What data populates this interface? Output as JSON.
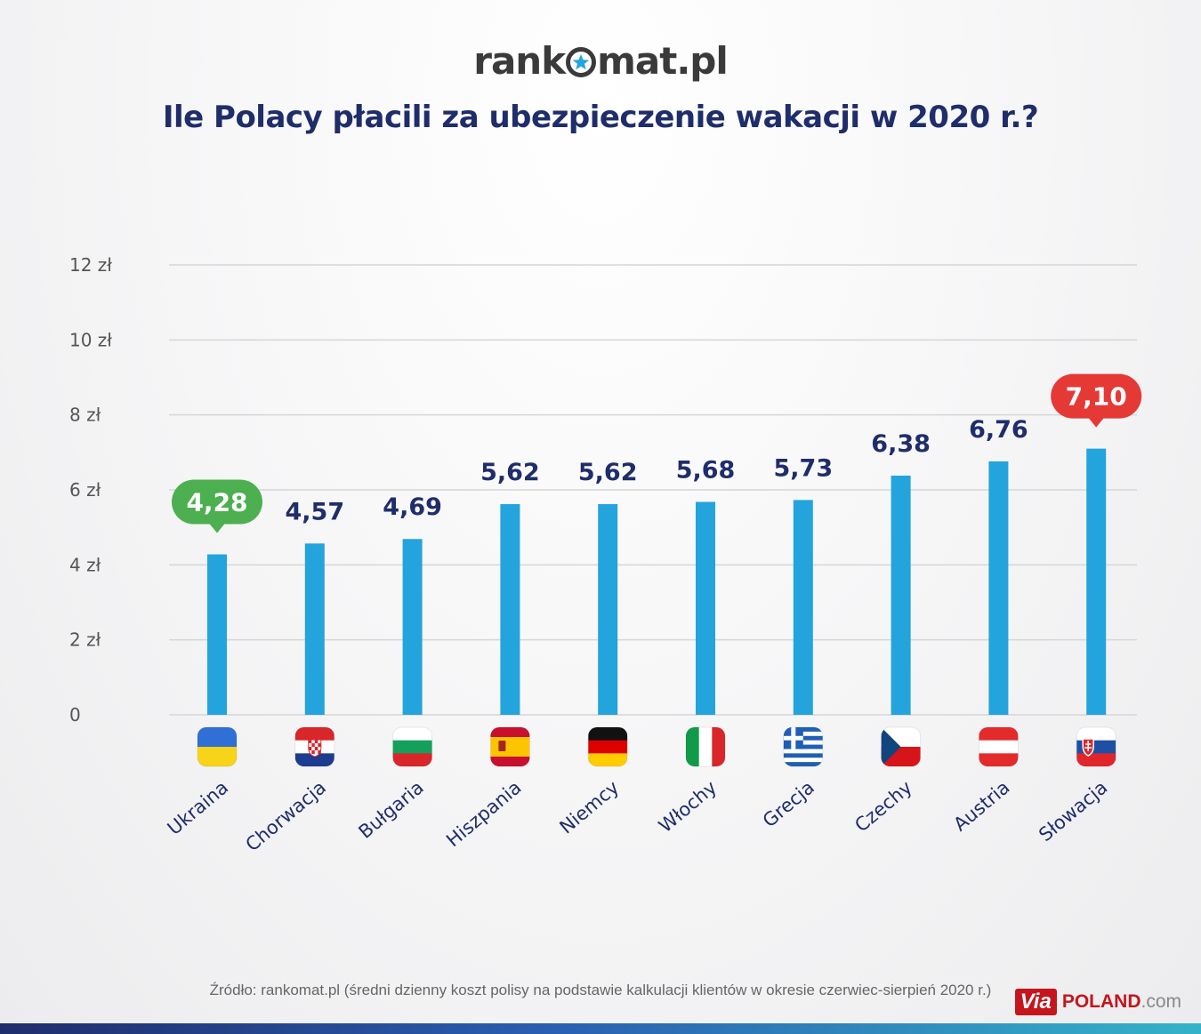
{
  "brand": {
    "logo_text": "rankomat.pl",
    "logo_prefix": "rank",
    "logo_suffix": "mat.pl"
  },
  "colors": {
    "bar": "#23a4dd",
    "min_badge": "#4caf50",
    "max_badge": "#e53935",
    "value_text": "#1f2d6b",
    "grid": "#d6d6d6"
  },
  "chart_data": {
    "type": "bar",
    "title": "Ile Polacy płacili za ubezpieczenie wakacji w 2020 r.?",
    "categories": [
      "Ukraina",
      "Chorwacja",
      "Bułgaria",
      "Hiszpania",
      "Niemcy",
      "Włochy",
      "Grecja",
      "Czechy",
      "Austria",
      "Słowacja"
    ],
    "values": [
      4.28,
      4.57,
      4.69,
      5.62,
      5.62,
      5.68,
      5.73,
      6.38,
      6.76,
      7.1
    ],
    "value_labels": [
      "4,28",
      "4,57",
      "4,69",
      "5,62",
      "5,62",
      "5,68",
      "5,73",
      "6,38",
      "6,76",
      "7,10"
    ],
    "flag_icons": [
      "ukraine-flag-icon",
      "croatia-flag-icon",
      "bulgaria-flag-icon",
      "spain-flag-icon",
      "germany-flag-icon",
      "italy-flag-icon",
      "greece-flag-icon",
      "czechia-flag-icon",
      "austria-flag-icon",
      "slovakia-flag-icon"
    ],
    "highlight": {
      "min_index": 0,
      "max_index": 9
    },
    "y_ticks": [
      0,
      2,
      4,
      6,
      8,
      10,
      12
    ],
    "y_tick_labels": [
      "0",
      "2 zł",
      "4 zł",
      "6 zł",
      "8 zł",
      "10 zł",
      "12 zł"
    ],
    "ylim": [
      0,
      12
    ],
    "grid": true,
    "legend": "none"
  },
  "source_text": "Źródło: rankomat.pl (średni dzienny koszt polisy na podstawie kalkulacji klientów w okresie czerwiec-sierpień 2020 r.)",
  "watermark": {
    "via": "Via",
    "name": "POLAND",
    "domain": ".com"
  }
}
